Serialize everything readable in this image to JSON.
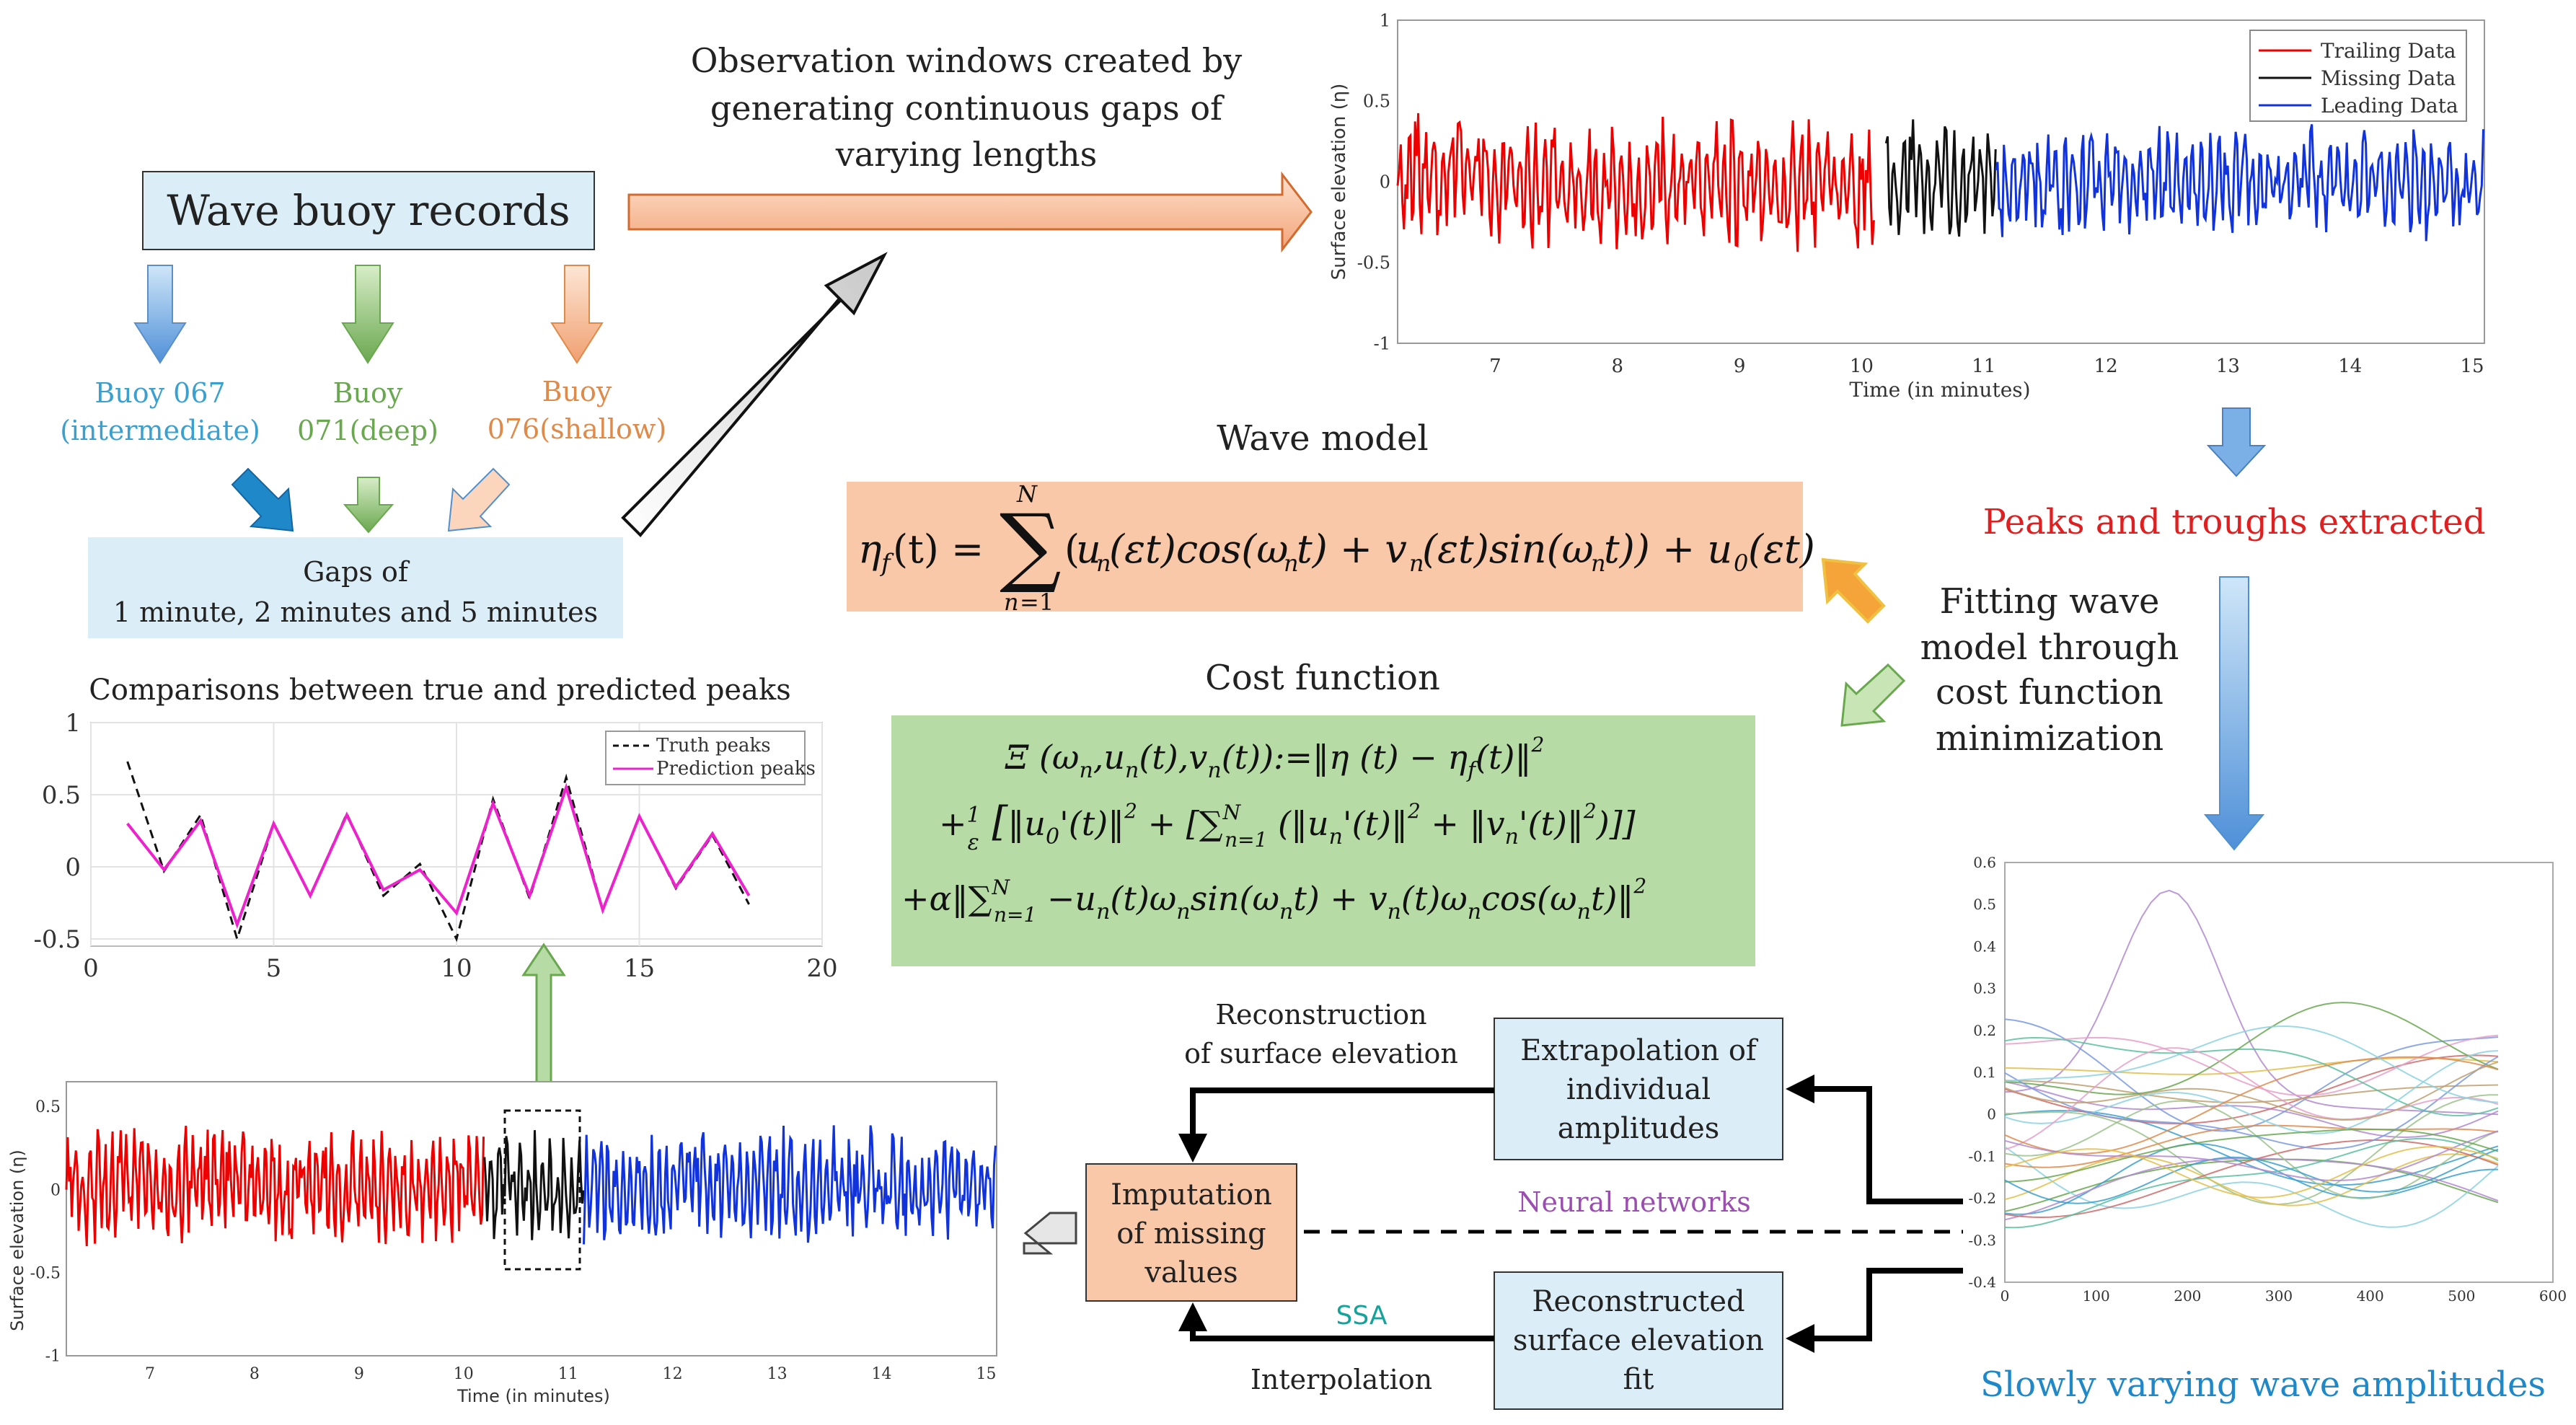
{
  "colors": {
    "trailing": "#ee0000",
    "missing": "#111111",
    "leading": "#1133dd",
    "prediction": "#ee22cc",
    "buoy067": "#3aa0cf",
    "buoy071": "#6aa84f",
    "buoy076": "#e08a4a",
    "peaks_red": "#e02020",
    "amplitudes_blue": "#1e88c8",
    "neural_purple": "#9a4fb0",
    "ssa_teal": "#14a39a",
    "box_blue": "#dbeef7",
    "box_orange": "#fbcaa8",
    "box_green": "#b6dba5",
    "box_salmon": "#f8c8a8"
  },
  "wave_buoy": {
    "title": "Wave buoy records"
  },
  "buoys": [
    {
      "line1": "Buoy 067",
      "line2": "(intermediate)",
      "color": "#3aa0cf"
    },
    {
      "line1": "Buoy",
      "line2": "071(deep)",
      "color": "#6aa84f"
    },
    {
      "line1": "Buoy",
      "line2": "076(shallow)",
      "color": "#e08a4a"
    }
  ],
  "gaps": {
    "line1": "Gaps of",
    "line2": "1 minute, 2 minutes and 5 minutes"
  },
  "observation": {
    "line1": "Observation windows created by",
    "line2": "generating continuous gaps of",
    "line3": "varying lengths"
  },
  "wave_model": {
    "title": "Wave model"
  },
  "cost_function": {
    "title": "Cost function"
  },
  "fitting": {
    "line1": "Fitting wave",
    "line2": "model through",
    "line3": "cost function",
    "line4": "minimization"
  },
  "peaks_label": "Peaks and troughs extracted",
  "amplitudes_label": "Slowly varying wave amplitudes",
  "comparisons_title": "Comparisons between true and predicted peaks",
  "extrapolation": {
    "line1": "Extrapolation of",
    "line2": "individual",
    "line3": "amplitudes"
  },
  "reconstructed": {
    "line1": "Reconstructed",
    "line2": "surface elevation",
    "line3": "fit"
  },
  "imputation": {
    "line1": "Imputation",
    "line2": "of missing",
    "line3": "values"
  },
  "reconstruction_label": {
    "line1": "Reconstruction",
    "line2": "of surface elevation"
  },
  "neural_networks": "Neural networks",
  "ssa": "SSA",
  "interpolation": "Interpolation",
  "chart_data": [
    {
      "type": "line",
      "id": "top-elevation",
      "xlabel": "Time (in minutes)",
      "ylabel": "Surface elevation (η)",
      "xlim": [
        6.2,
        15.1
      ],
      "ylim": [
        -1,
        1
      ],
      "xticks": [
        "7",
        "8",
        "9",
        "10",
        "11",
        "12",
        "13",
        "14",
        "15"
      ],
      "yticks": [
        "1",
        "0.5",
        "0",
        "-0.5",
        "-1"
      ],
      "series": [
        {
          "name": "Trailing Data",
          "x_range": [
            6.2,
            10.1
          ],
          "amplitude": 0.55
        },
        {
          "name": "Missing Data",
          "x_range": [
            10.2,
            11.1
          ],
          "amplitude": 0.5
        },
        {
          "name": "Leading Data",
          "x_range": [
            11.1,
            15.1
          ],
          "amplitude": 0.45
        }
      ],
      "legend": "top-right"
    },
    {
      "type": "line",
      "id": "peaks-comparison",
      "xlim": [
        0,
        20
      ],
      "ylim": [
        -0.55,
        1
      ],
      "xticks": [
        "0",
        "5",
        "10",
        "15",
        "20"
      ],
      "yticks": [
        "1",
        "0.5",
        "0",
        "-0.5"
      ],
      "grid": true,
      "series": [
        {
          "name": "Truth peaks",
          "x": [
            1,
            2,
            3,
            4,
            5,
            6,
            7,
            8,
            9,
            10,
            11,
            12,
            13,
            14,
            15,
            16,
            17,
            18
          ],
          "values": [
            0.73,
            -0.03,
            0.36,
            -0.5,
            0.3,
            -0.2,
            0.37,
            -0.2,
            0.02,
            -0.5,
            0.47,
            -0.22,
            0.62,
            -0.3,
            0.35,
            -0.15,
            0.22,
            -0.26
          ]
        },
        {
          "name": "Prediction peaks",
          "x": [
            1,
            2,
            3,
            4,
            5,
            6,
            7,
            8,
            9,
            10,
            11,
            12,
            13,
            14,
            15,
            16,
            17,
            18
          ],
          "values": [
            0.3,
            -0.02,
            0.32,
            -0.4,
            0.3,
            -0.2,
            0.36,
            -0.16,
            -0.02,
            -0.32,
            0.44,
            -0.2,
            0.55,
            -0.3,
            0.35,
            -0.14,
            0.23,
            -0.2
          ]
        }
      ],
      "legend": "top-right"
    },
    {
      "type": "line",
      "id": "bottom-elevation",
      "xlabel": "Time (in minutes)",
      "ylabel": "Surface elevation (η)",
      "xlim": [
        6.2,
        15.1
      ],
      "ylim": [
        -1,
        0.65
      ],
      "xticks": [
        "7",
        "8",
        "9",
        "10",
        "11",
        "12",
        "13",
        "14",
        "15"
      ],
      "yticks": [
        "0.5",
        "0",
        "-0.5",
        "-1"
      ],
      "series": [
        {
          "name": "Trailing Data",
          "x_range": [
            6.2,
            10.2
          ],
          "amplitude": 0.45
        },
        {
          "name": "Missing Data",
          "x_range": [
            10.2,
            11.15
          ],
          "amplitude": 0.45
        },
        {
          "name": "Leading Data",
          "x_range": [
            11.15,
            15.1
          ],
          "amplitude": 0.45
        }
      ]
    },
    {
      "type": "line",
      "id": "amplitudes",
      "xlim": [
        0,
        600
      ],
      "ylim": [
        -0.4,
        0.6
      ],
      "xticks": [
        "0",
        "100",
        "200",
        "300",
        "400",
        "500",
        "600"
      ],
      "yticks": [
        "0.6",
        "0.5",
        "0.4",
        "0.3",
        "0.2",
        "0.1",
        "0",
        "-0.1",
        "-0.2",
        "-0.3",
        "-0.4"
      ],
      "series_count": 30,
      "x_end": 540
    }
  ]
}
